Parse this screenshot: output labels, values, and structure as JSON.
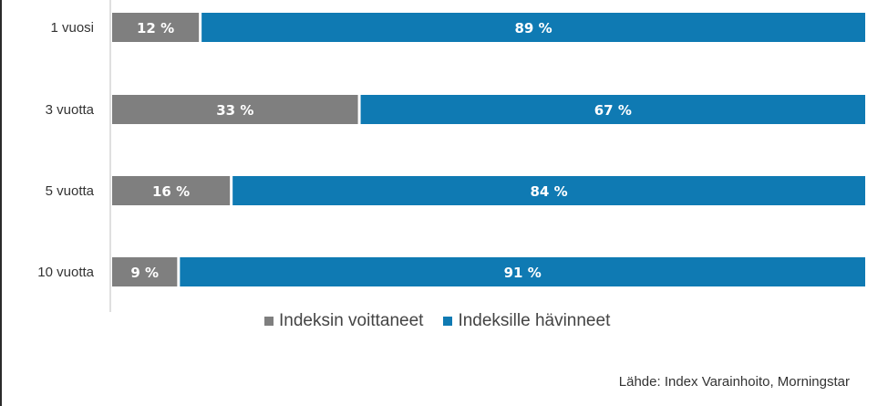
{
  "chart_data": {
    "type": "bar",
    "orientation": "horizontal",
    "stacked": true,
    "categories": [
      "1 vuosi",
      "3 vuotta",
      "5 vuotta",
      "10 vuotta"
    ],
    "series": [
      {
        "name": "Indeksin voittaneet",
        "color": "#7f7f7f",
        "values": [
          12,
          33,
          16,
          9
        ],
        "labels": [
          "12 %",
          "33 %",
          "16 %",
          "9 %"
        ]
      },
      {
        "name": "Indeksille hävinneet",
        "color": "#0f7ab3",
        "values": [
          89,
          67,
          84,
          91
        ],
        "labels": [
          "89 %",
          "67 %",
          "84 %",
          "91 %"
        ]
      }
    ],
    "legend_position": "bottom",
    "grid": false
  },
  "legend": {
    "items": [
      {
        "label": "Indeksin voittaneet",
        "color": "#7f7f7f"
      },
      {
        "label": "Indeksille hävinneet",
        "color": "#0f7ab3"
      }
    ]
  },
  "source": "Lähde: Index Varainhoito, Morningstar"
}
